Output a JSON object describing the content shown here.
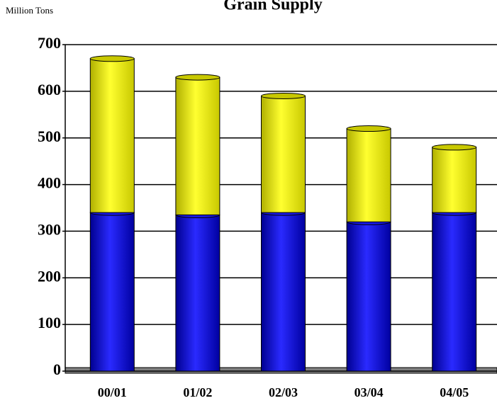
{
  "chart_data": {
    "type": "bar",
    "stacked": true,
    "title": "Grain Supply",
    "ylabel": "Million Tons",
    "categories": [
      "00/01",
      "01/02",
      "02/03",
      "03/04",
      "04/05"
    ],
    "series": [
      {
        "color": "#1a1ae6",
        "values": [
          340,
          335,
          340,
          320,
          340
        ]
      },
      {
        "color": "#f0f000",
        "values": [
          330,
          295,
          250,
          200,
          140
        ]
      }
    ],
    "ylim": [
      0,
      700
    ],
    "yticks": [
      0,
      100,
      200,
      300,
      400,
      500,
      600,
      700
    ],
    "grid": true
  }
}
